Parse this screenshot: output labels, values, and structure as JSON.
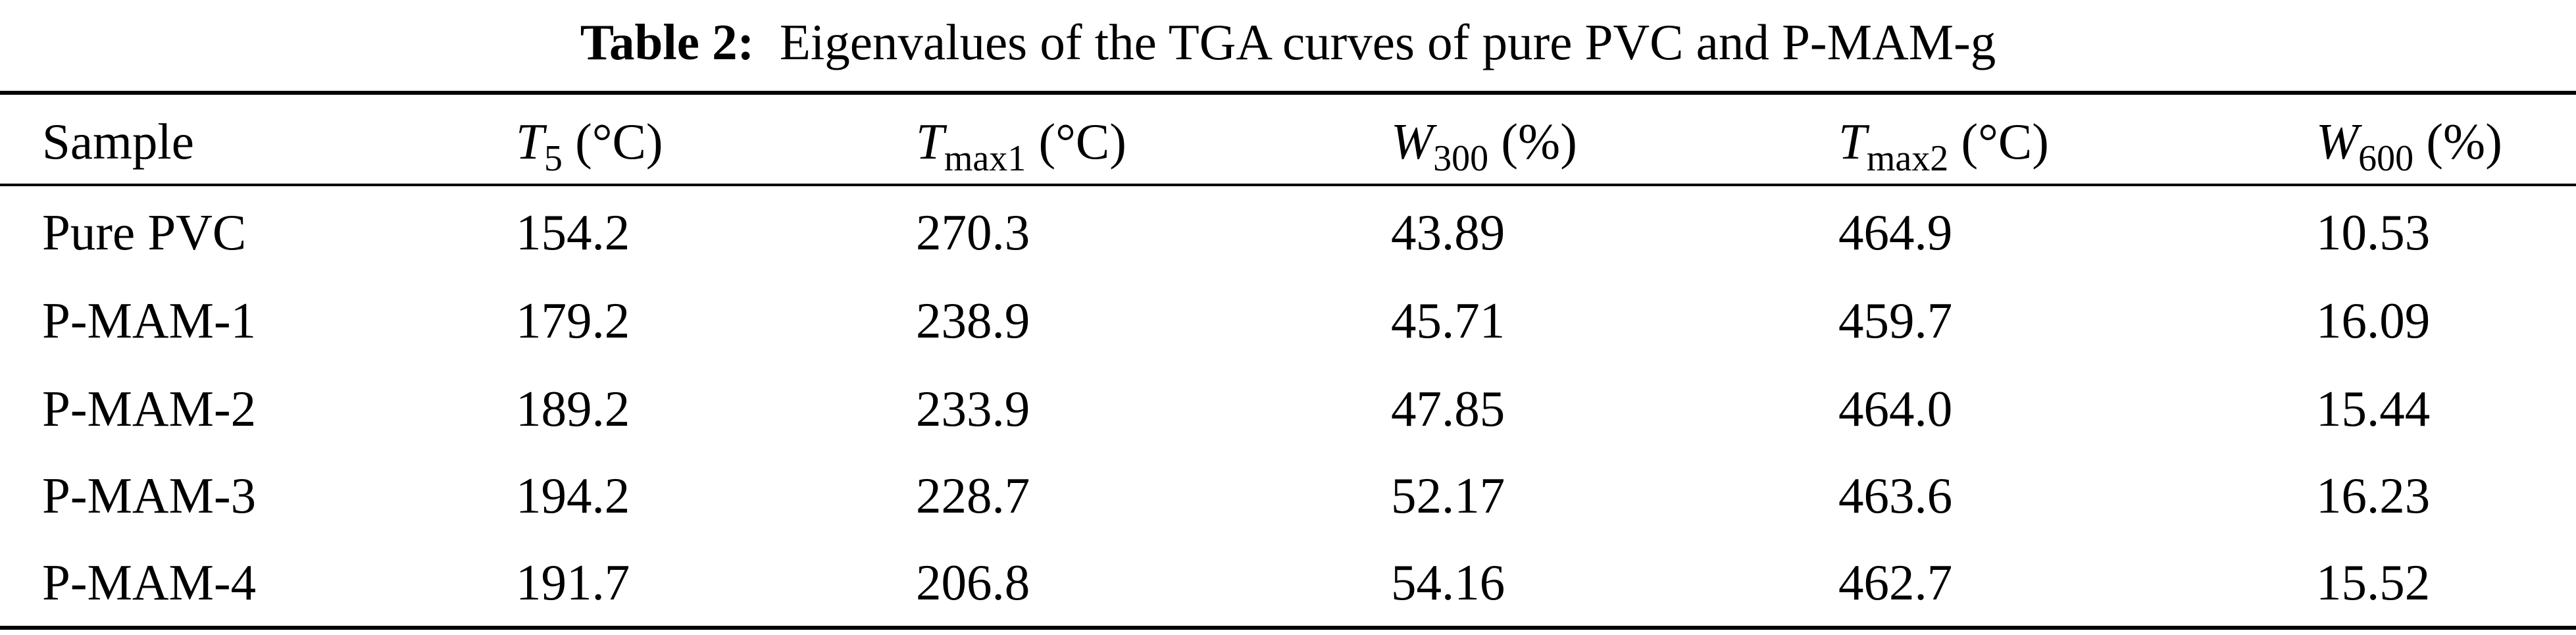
{
  "caption": {
    "label": "Table 2:",
    "text": "Eigenvalues of the TGA curves of pure PVC and P-MAM-g"
  },
  "table": {
    "headers": [
      {
        "var": "",
        "sub": "",
        "unit": "Sample"
      },
      {
        "var": "T",
        "sub": "5",
        "unit": " (°C)"
      },
      {
        "var": "T",
        "sub": "max1",
        "unit": " (°C)"
      },
      {
        "var": "W",
        "sub": "300",
        "unit": " (%)"
      },
      {
        "var": "T",
        "sub": "max2",
        "unit": " (°C)"
      },
      {
        "var": "W",
        "sub": "600",
        "unit": " (%)"
      }
    ],
    "rows": [
      [
        "Pure PVC",
        "154.2",
        "270.3",
        "43.89",
        "464.9",
        "10.53"
      ],
      [
        "P-MAM-1",
        "179.2",
        "238.9",
        "45.71",
        "459.7",
        "16.09"
      ],
      [
        "P-MAM-2",
        "189.2",
        "233.9",
        "47.85",
        "464.0",
        "15.44"
      ],
      [
        "P-MAM-3",
        "194.2",
        "228.7",
        "52.17",
        "463.6",
        "16.23"
      ],
      [
        "P-MAM-4",
        "191.7",
        "206.8",
        "54.16",
        "462.7",
        "15.52"
      ]
    ]
  }
}
